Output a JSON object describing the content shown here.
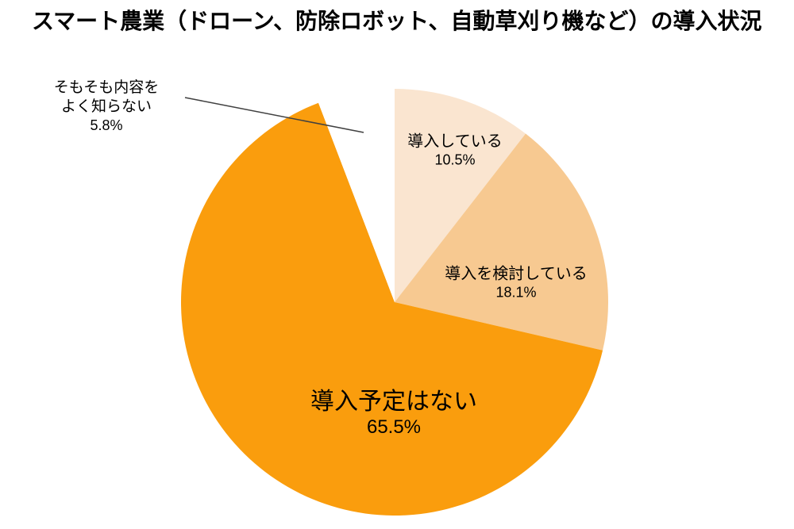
{
  "title": "スマート農業（ドローン、防除ロボット、自動草刈り機など）の導入状況",
  "chart_data": {
    "type": "pie",
    "title": "スマート農業（ドローン、防除ロボット、自動草刈り機など）の導入状況",
    "unit": "%",
    "direction": "clockwise",
    "start_angle_deg": 0,
    "legend": "none",
    "labels_position": "inside slices; smallest slice labeled outside with leader line",
    "background": "#FFFFFF",
    "text_color": "#000000",
    "leader_line_color": "#404040",
    "slices": [
      {
        "label": "導入している",
        "value": 10.5,
        "value_label": "10.5%",
        "color": "#FAE5D0"
      },
      {
        "label": "導入を検討している",
        "value": 18.1,
        "value_label": "18.1%",
        "color": "#F7C991"
      },
      {
        "label": "導入予定はない",
        "value": 65.5,
        "value_label": "65.5%",
        "color": "#FA9D0D"
      },
      {
        "label": "そもそも内容をよく知らない",
        "value": 5.8,
        "value_label": "5.8%",
        "color": "#FFFFFF",
        "label_lines": [
          "そもそも内容を",
          "よく知らない"
        ]
      }
    ]
  }
}
